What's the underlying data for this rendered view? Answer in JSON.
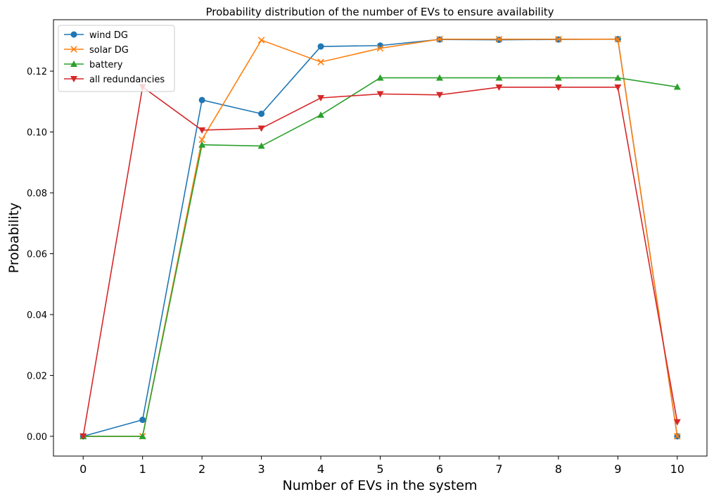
{
  "chart_data": {
    "type": "line",
    "title": "Probability distribution of the number of EVs to ensure availability",
    "xlabel": "Number of EVs in the system",
    "ylabel": "Probability",
    "x": [
      0,
      1,
      2,
      3,
      4,
      5,
      6,
      7,
      8,
      9,
      10
    ],
    "xticks": [
      "0",
      "1",
      "2",
      "3",
      "4",
      "5",
      "6",
      "7",
      "8",
      "9",
      "10"
    ],
    "yticks": [
      "0.00",
      "0.02",
      "0.04",
      "0.06",
      "0.08",
      "0.10",
      "0.12"
    ],
    "ytick_values": [
      0,
      0.02,
      0.04,
      0.06,
      0.08,
      0.1,
      0.12
    ],
    "xlim": [
      -0.5,
      10.5
    ],
    "ylim": [
      -0.0065,
      0.1369
    ],
    "grid": false,
    "legend_position": "top-left",
    "series": [
      {
        "name": "wind DG",
        "color": "#1f77b4",
        "marker": "circle",
        "values": [
          0.0,
          0.0054,
          0.1105,
          0.106,
          0.1281,
          0.1284,
          0.1304,
          0.1303,
          0.1304,
          0.1305,
          0.0
        ]
      },
      {
        "name": "solar DG",
        "color": "#ff7f0e",
        "marker": "x",
        "values": [
          0.0,
          0.0,
          0.0975,
          0.1302,
          0.123,
          0.1275,
          0.1305,
          0.1305,
          0.1305,
          0.1305,
          0.0
        ]
      },
      {
        "name": "battery",
        "color": "#2ca02c",
        "marker": "triangle-up",
        "values": [
          0.0,
          0.0,
          0.0958,
          0.0954,
          0.1056,
          0.1178,
          0.1178,
          0.1178,
          0.1178,
          0.1178,
          0.1148
        ]
      },
      {
        "name": "all redundancies",
        "color": "#d62728",
        "marker": "triangle-down",
        "values": [
          0.0,
          0.1148,
          0.1006,
          0.1012,
          0.1112,
          0.1125,
          0.1122,
          0.1147,
          0.1147,
          0.1147,
          0.0047
        ]
      }
    ]
  }
}
